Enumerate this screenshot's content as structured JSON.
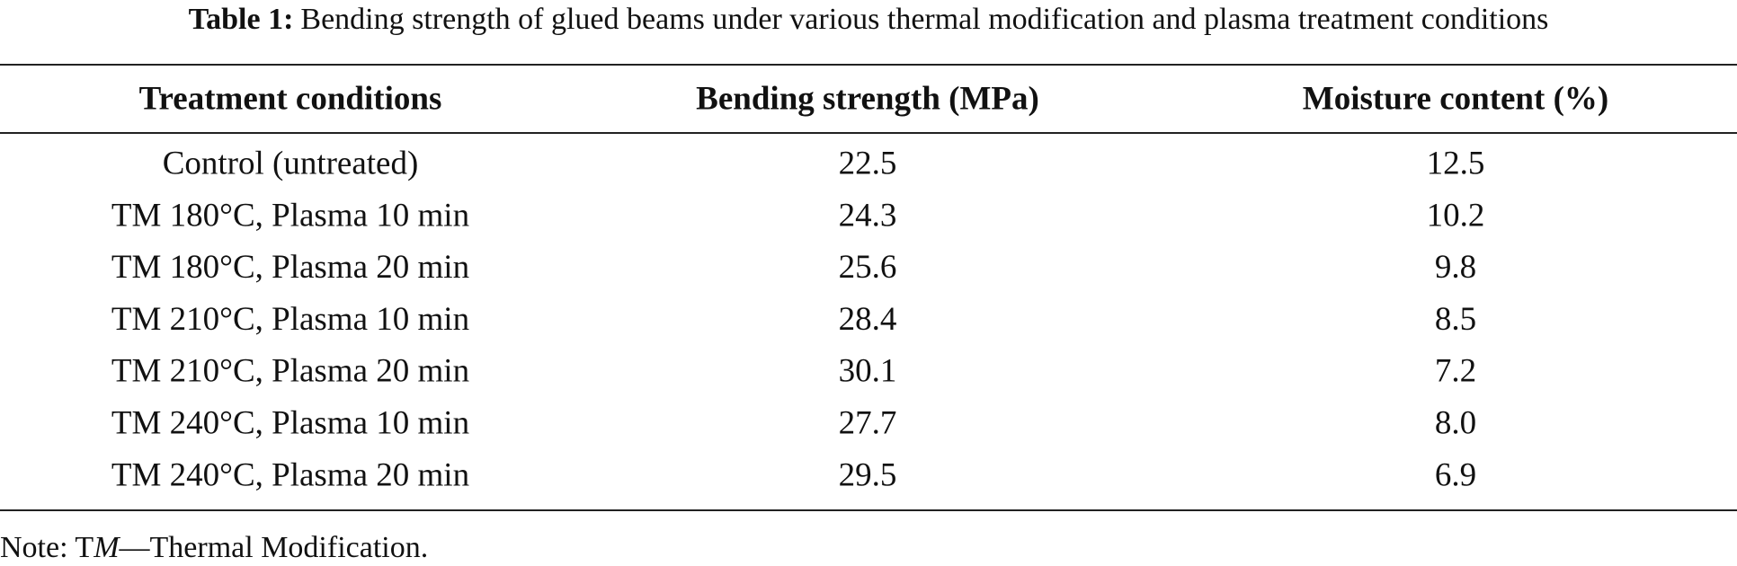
{
  "caption": {
    "label": "Table 1:",
    "text": "Bending strength of glued beams under various thermal modification and plasma treatment conditions"
  },
  "table": {
    "header": [
      "Treatment conditions",
      "Bending strength (MPa)",
      "Moisture content (%)"
    ],
    "rows": [
      [
        "Control (untreated)",
        "22.5",
        "12.5"
      ],
      [
        "TM 180°C, Plasma 10 min",
        "24.3",
        "10.2"
      ],
      [
        "TM 180°C, Plasma 20 min",
        "25.6",
        "9.8"
      ],
      [
        "TM 210°C, Plasma 10 min",
        "28.4",
        "8.5"
      ],
      [
        "TM 210°C, Plasma 20 min",
        "30.1",
        "7.2"
      ],
      [
        "TM 240°C, Plasma 10 min",
        "27.7",
        "8.0"
      ],
      [
        "TM 240°C, Plasma 20 min",
        "29.5",
        "6.9"
      ]
    ]
  },
  "note": {
    "prefix": "Note: T",
    "italic": "M",
    "text": "—Thermal Modification."
  }
}
